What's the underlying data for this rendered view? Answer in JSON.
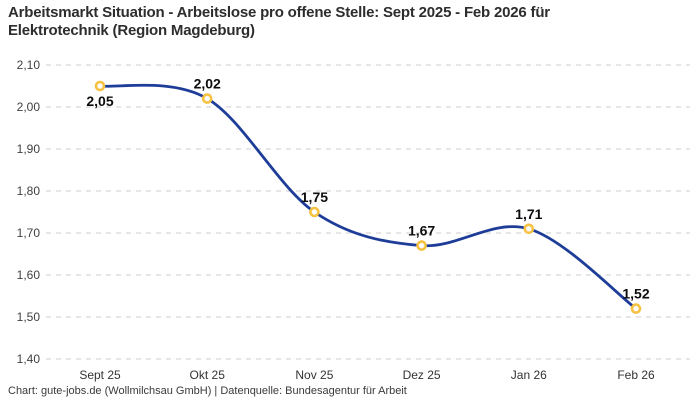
{
  "title": {
    "line1": "Arbeitsmarkt Situation - Arbeitslose pro offene Stelle: Sept 2025 - Feb 2026 für",
    "line2": "Elektrotechnik (Region Magdeburg)"
  },
  "footer": {
    "credit": "Chart: gute-jobs.de (Wollmilchsau GmbH) | Datenquelle: Bundesagentur für Arbeit"
  },
  "chart_data": {
    "type": "line",
    "title": "Arbeitsmarkt Situation - Arbeitslose pro offene Stelle: Sept 2025 - Feb 2026 für Elektrotechnik (Region Magdeburg)",
    "categories": [
      "Sept 25",
      "Okt 25",
      "Nov 25",
      "Dez 25",
      "Jan 26",
      "Feb 26"
    ],
    "values": [
      2.05,
      2.02,
      1.75,
      1.67,
      1.71,
      1.52
    ],
    "point_labels": [
      "2,05",
      "2,02",
      "1,75",
      "1,67",
      "1,71",
      "1,52"
    ],
    "point_label_positions": [
      "below",
      "above",
      "above",
      "above",
      "above",
      "above"
    ],
    "xlabel": "",
    "ylabel": "",
    "ylim": [
      1.4,
      2.1
    ],
    "y_ticks": {
      "values": [
        2.1,
        2.0,
        1.9,
        1.8,
        1.7,
        1.6,
        1.5,
        1.4
      ],
      "labels": [
        "2,10",
        "2,00",
        "1,90",
        "1,80",
        "1,70",
        "1,60",
        "1,50",
        "1,40"
      ]
    },
    "grid": "horizontal-dashed",
    "legend": "none",
    "line_style": "smooth-spline",
    "colors": {
      "line": "#1e3d99",
      "marker_stroke": "#f5c242",
      "marker_fill": "#ffffff",
      "grid": "#cccccc",
      "title_text": "#2d2d2d",
      "tick_text": "#404040",
      "data_label_text": "#0d0d0d"
    }
  }
}
